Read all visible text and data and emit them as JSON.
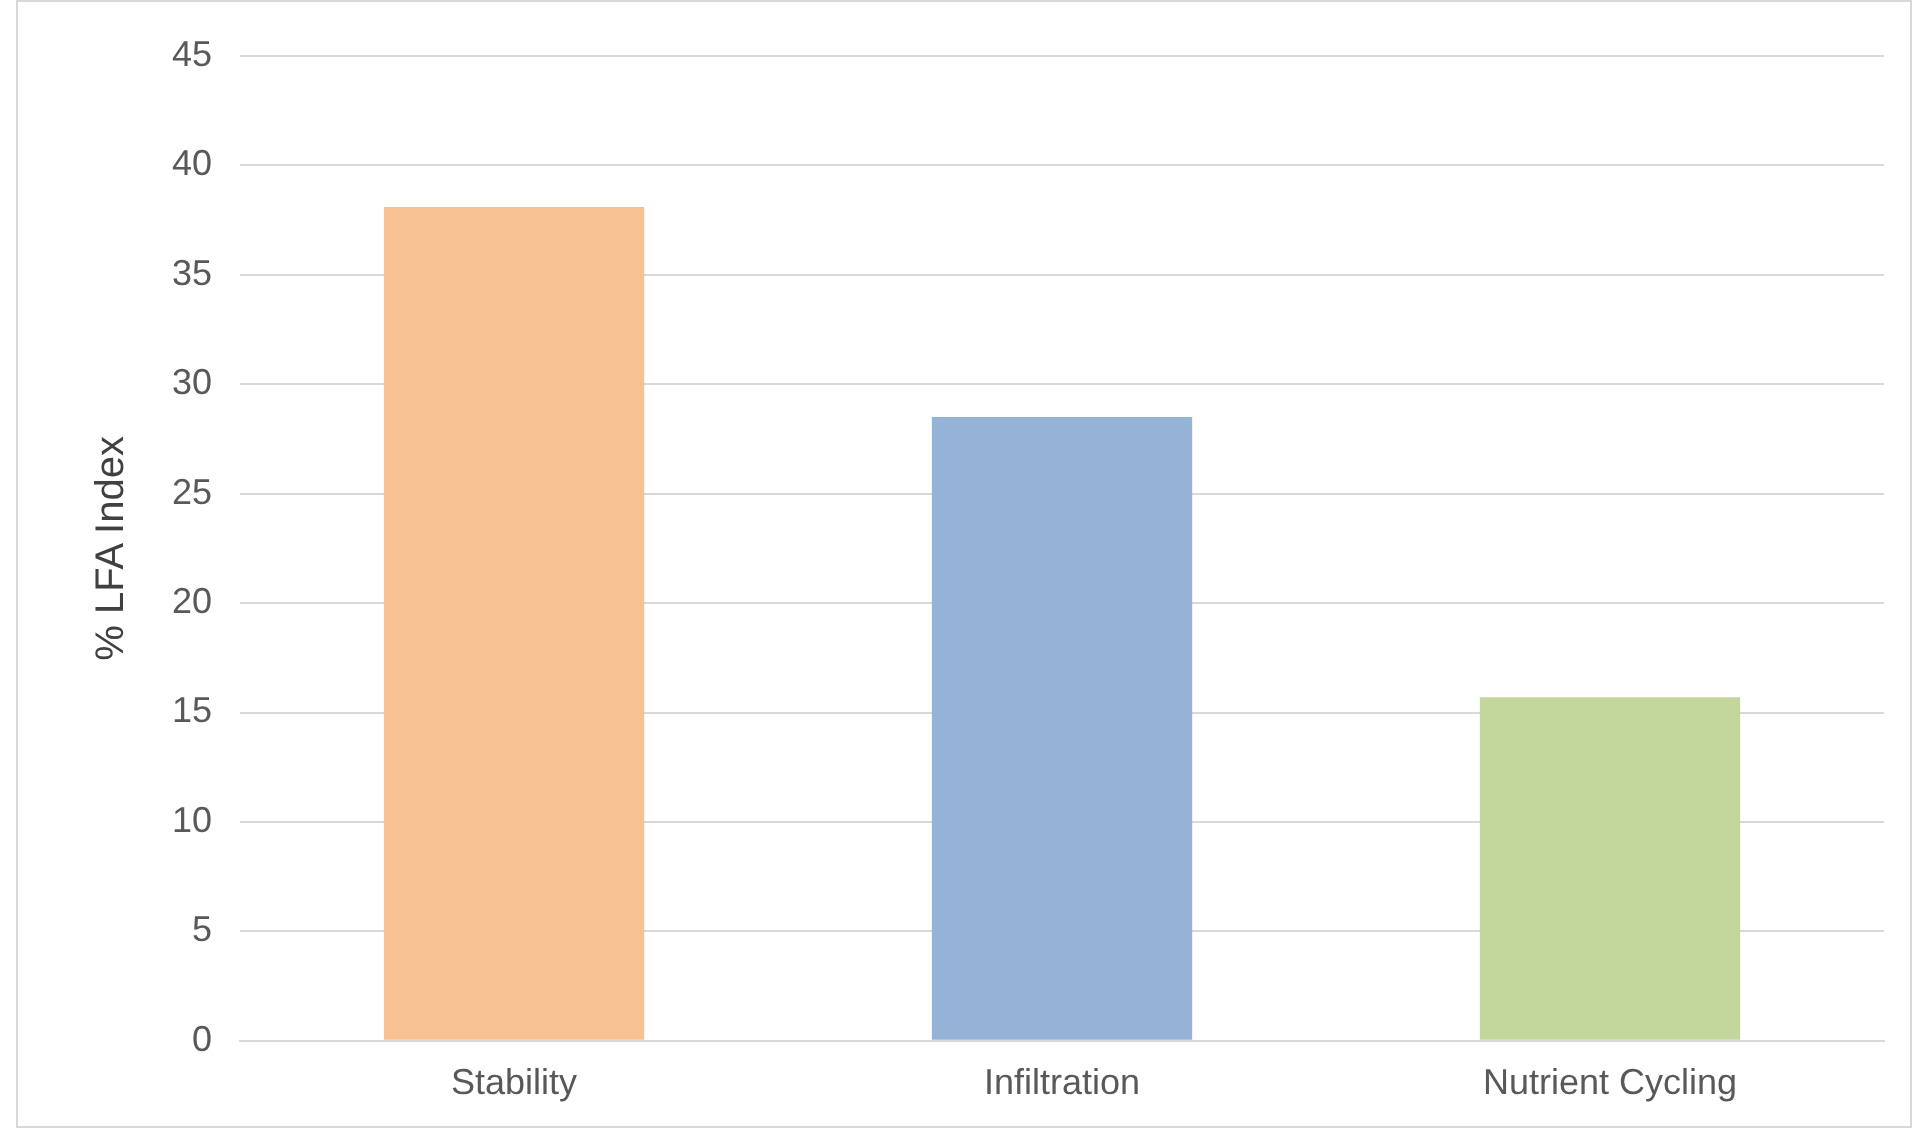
{
  "chart_data": {
    "type": "bar",
    "ylabel": "% LFA Index",
    "categories": [
      "Stability",
      "Infiltration",
      "Nutrient Cycling"
    ],
    "values": [
      38.1,
      28.5,
      15.7
    ],
    "colors": [
      "#f8c191",
      "#95b3d7",
      "#c3d69b"
    ],
    "ylim": [
      0,
      45
    ],
    "yticks": [
      0,
      5,
      10,
      15,
      20,
      25,
      30,
      35,
      40,
      45
    ],
    "grid": "y"
  }
}
